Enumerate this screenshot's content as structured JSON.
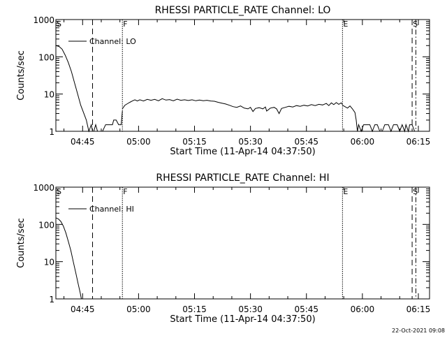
{
  "timestamp": "22-Oct-2021 09:08",
  "chart_data": [
    {
      "type": "line",
      "title": "RHESSI PARTICLE_RATE Channel: LO",
      "xlabel": "Start Time (11-Apr-14 04:37:50)",
      "ylabel": "Counts/sec",
      "yscale": "log",
      "ylim": [
        1,
        1000
      ],
      "xlim": [
        "04:37:50",
        "06:18:00"
      ],
      "xticks": [
        "04:45",
        "05:00",
        "05:15",
        "05:30",
        "05:45",
        "06:00",
        "06:15"
      ],
      "yticks": [
        "1",
        "10",
        "100",
        "1000"
      ],
      "legend": {
        "placement": "top-left",
        "entries": [
          "Channel: LO"
        ]
      },
      "markers": [
        {
          "label": "S",
          "time": "04:37:50",
          "style": "solid"
        },
        {
          "label": "",
          "time": "04:47:40",
          "style": "dashed"
        },
        {
          "label": "F",
          "time": "04:55:40",
          "style": "dotted"
        },
        {
          "label": "E",
          "time": "05:54:40",
          "style": "dotted"
        },
        {
          "label": "S",
          "time": "06:13:20",
          "style": "dashed"
        },
        {
          "label": "",
          "time": "06:14:20",
          "style": "dash-dot"
        }
      ],
      "series": [
        {
          "name": "Channel: LO",
          "segments": [
            [
              [
                "04:37:50",
                200
              ],
              [
                "04:38:40",
                190
              ],
              [
                "04:39:30",
                160
              ],
              [
                "04:40:20",
                110
              ],
              [
                "04:41:10",
                70
              ],
              [
                "04:42:00",
                40
              ],
              [
                "04:42:50",
                20
              ],
              [
                "04:43:40",
                10
              ],
              [
                "04:44:30",
                5
              ],
              [
                "04:45:20",
                3
              ],
              [
                "04:46:00",
                2
              ],
              [
                "04:46:40",
                1
              ],
              [
                "04:47:20",
                1.5
              ],
              [
                "04:47:40",
                1
              ],
              [
                "04:48:00",
                1
              ],
              [
                "04:48:30",
                1.5
              ],
              [
                "04:49:00",
                1
              ],
              [
                "04:49:40",
                1
              ],
              [
                "04:50:20",
                1
              ],
              [
                "04:51:10",
                1.5
              ],
              [
                "04:51:30",
                1.5
              ],
              [
                "04:53:00",
                1.5
              ],
              [
                "04:53:20",
                2
              ],
              [
                "04:54:00",
                2
              ],
              [
                "04:54:40",
                1.5
              ],
              [
                "04:55:20",
                1.5
              ],
              [
                "04:55:40",
                3.5
              ]
            ],
            [
              [
                "04:55:40",
                4
              ],
              [
                "04:56:20",
                5
              ],
              [
                "04:57:00",
                5.5
              ],
              [
                "04:57:40",
                6
              ],
              [
                "04:58:20",
                6.5
              ],
              [
                "04:59:00",
                7
              ],
              [
                "04:59:40",
                6.5
              ],
              [
                "05:00:20",
                7
              ],
              [
                "05:01:20",
                6.5
              ],
              [
                "05:02:20",
                7.2
              ],
              [
                "05:03:20",
                6.8
              ],
              [
                "05:04:20",
                7.2
              ],
              [
                "05:05:20",
                6.6
              ],
              [
                "05:06:20",
                7.5
              ],
              [
                "05:07:20",
                6.9
              ],
              [
                "05:08:20",
                7.1
              ],
              [
                "05:09:20",
                6.6
              ],
              [
                "05:10:20",
                7.3
              ],
              [
                "05:11:20",
                6.8
              ],
              [
                "05:12:20",
                7.0
              ],
              [
                "05:13:20",
                6.7
              ],
              [
                "05:14:20",
                7.0
              ],
              [
                "05:15:20",
                6.6
              ],
              [
                "05:16:20",
                6.9
              ],
              [
                "05:17:20",
                6.6
              ],
              [
                "05:18:20",
                6.8
              ],
              [
                "05:19:20",
                6.5
              ],
              [
                "05:20:20",
                6.4
              ],
              [
                "05:21:20",
                6.0
              ],
              [
                "05:22:20",
                5.7
              ],
              [
                "05:23:20",
                5.4
              ],
              [
                "05:24:20",
                5.0
              ],
              [
                "05:25:20",
                4.6
              ],
              [
                "05:26:20",
                4.4
              ],
              [
                "05:27:20",
                4.8
              ],
              [
                "05:28:20",
                4.2
              ],
              [
                "05:29:20",
                4.0
              ],
              [
                "05:30:00",
                4.4
              ],
              [
                "05:30:40",
                3.4
              ],
              [
                "05:31:20",
                4.1
              ],
              [
                "05:32:20",
                4.3
              ],
              [
                "05:33:20",
                4.0
              ],
              [
                "05:34:00",
                4.5
              ],
              [
                "05:34:20",
                3.5
              ],
              [
                "05:35:20",
                4.2
              ],
              [
                "05:36:20",
                4.4
              ],
              [
                "05:37:00",
                4.0
              ],
              [
                "05:37:40",
                3.0
              ],
              [
                "05:38:20",
                4.1
              ],
              [
                "05:39:20",
                4.4
              ],
              [
                "05:40:20",
                4.7
              ],
              [
                "05:41:20",
                4.5
              ],
              [
                "05:42:20",
                4.9
              ],
              [
                "05:43:20",
                4.7
              ],
              [
                "05:44:20",
                5.0
              ],
              [
                "05:45:20",
                4.8
              ],
              [
                "05:46:20",
                5.2
              ],
              [
                "05:47:20",
                4.9
              ],
              [
                "05:48:20",
                5.3
              ],
              [
                "05:49:20",
                5.1
              ],
              [
                "05:50:20",
                5.6
              ],
              [
                "05:51:00",
                4.9
              ],
              [
                "05:51:40",
                5.8
              ],
              [
                "05:52:20",
                5.2
              ],
              [
                "05:53:00",
                5.9
              ],
              [
                "05:53:40",
                5.3
              ],
              [
                "05:54:20",
                5.8
              ],
              [
                "05:54:40",
                5.2
              ]
            ],
            [
              [
                "05:54:40",
                5.0
              ],
              [
                "05:55:20",
                4.6
              ],
              [
                "05:56:00",
                4.2
              ],
              [
                "05:56:40",
                4.8
              ],
              [
                "05:57:20",
                4.0
              ],
              [
                "05:58:00",
                3.2
              ],
              [
                "05:58:20",
                2.0
              ],
              [
                "05:58:40",
                1.0
              ],
              [
                "05:59:00",
                1.5
              ],
              [
                "05:59:40",
                1.0
              ],
              [
                "06:00:20",
                1.5
              ],
              [
                "06:01:00",
                1.5
              ],
              [
                "06:02:00",
                1.5
              ],
              [
                "06:02:40",
                1.0
              ],
              [
                "06:03:20",
                1.5
              ],
              [
                "06:04:00",
                1.5
              ],
              [
                "06:04:40",
                1.0
              ],
              [
                "06:05:20",
                1.0
              ],
              [
                "06:06:00",
                1.5
              ],
              [
                "06:07:00",
                1.5
              ],
              [
                "06:07:40",
                1.0
              ],
              [
                "06:08:20",
                1.5
              ],
              [
                "06:09:20",
                1.5
              ],
              [
                "06:10:00",
                1.0
              ],
              [
                "06:10:40",
                1.5
              ],
              [
                "06:11:20",
                1.0
              ],
              [
                "06:11:40",
                1.5
              ],
              [
                "06:12:20",
                1.0
              ],
              [
                "06:12:40",
                1.5
              ],
              [
                "06:13:20",
                1.5
              ],
              [
                "06:14:00",
                1.0
              ]
            ]
          ]
        }
      ]
    },
    {
      "type": "line",
      "title": "RHESSI PARTICLE_RATE Channel: HI",
      "xlabel": "Start Time (11-Apr-14 04:37:50)",
      "ylabel": "Counts/sec",
      "yscale": "log",
      "ylim": [
        1,
        1000
      ],
      "xlim": [
        "04:37:50",
        "06:18:00"
      ],
      "xticks": [
        "04:45",
        "05:00",
        "05:15",
        "05:30",
        "05:45",
        "06:00",
        "06:15"
      ],
      "yticks": [
        "1",
        "10",
        "100",
        "1000"
      ],
      "legend": {
        "placement": "top-left",
        "entries": [
          "Channel: HI"
        ]
      },
      "markers": [
        {
          "label": "S",
          "time": "04:37:50",
          "style": "solid"
        },
        {
          "label": "",
          "time": "04:47:40",
          "style": "dashed"
        },
        {
          "label": "F",
          "time": "04:55:40",
          "style": "dotted"
        },
        {
          "label": "E",
          "time": "05:54:40",
          "style": "dotted"
        },
        {
          "label": "S",
          "time": "06:13:20",
          "style": "dashed"
        },
        {
          "label": "",
          "time": "06:14:20",
          "style": "dash-dot"
        }
      ],
      "series": [
        {
          "name": "Channel: HI",
          "segments": [
            [
              [
                "04:37:50",
                150
              ],
              [
                "04:38:30",
                140
              ],
              [
                "04:39:10",
                120
              ],
              [
                "04:39:50",
                90
              ],
              [
                "04:40:30",
                60
              ],
              [
                "04:41:10",
                35
              ],
              [
                "04:41:50",
                20
              ],
              [
                "04:42:30",
                10
              ],
              [
                "04:43:10",
                5
              ],
              [
                "04:43:50",
                2.5
              ],
              [
                "04:44:20",
                1.5
              ],
              [
                "04:44:40",
                1
              ]
            ]
          ]
        }
      ]
    }
  ]
}
